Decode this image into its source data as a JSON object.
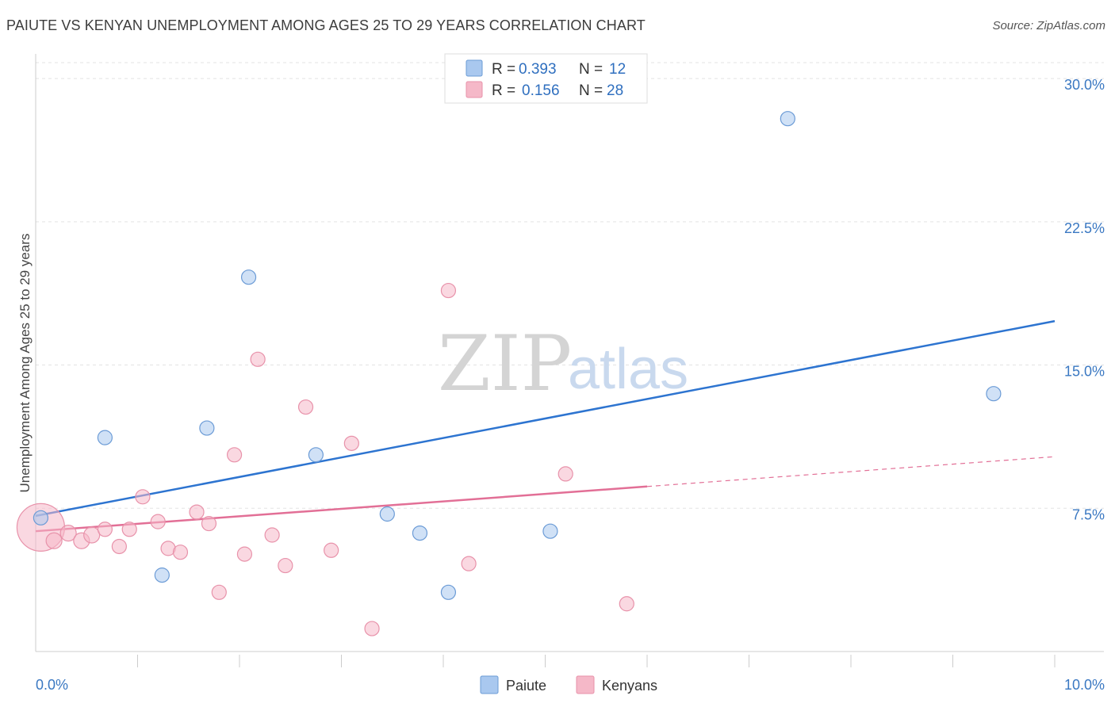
{
  "title": "PAIUTE VS KENYAN UNEMPLOYMENT AMONG AGES 25 TO 29 YEARS CORRELATION CHART",
  "source": "Source: ZipAtlas.com",
  "watermark": {
    "zip": "ZIP",
    "atlas": "atlas"
  },
  "legend_box": {
    "rows": [
      {
        "r_label": "R =",
        "r_value": "0.393",
        "n_label": "N =",
        "n_value": "12",
        "color": "#a9c8ef"
      },
      {
        "r_label": "R =",
        "r_value": "0.156",
        "n_label": "N =",
        "n_value": "28",
        "color": "#f5b8c8"
      }
    ]
  },
  "chart_data": {
    "type": "scatter",
    "title": "PAIUTE VS KENYAN UNEMPLOYMENT AMONG AGES 25 TO 29 YEARS CORRELATION CHART",
    "xlabel": "",
    "ylabel": "Unemployment Among Ages 25 to 29 years",
    "xlim": [
      0,
      10
    ],
    "ylim": [
      0,
      31
    ],
    "x_tick_labels": [
      "0.0%",
      "10.0%"
    ],
    "y_ticks": [
      7.5,
      15.0,
      22.5,
      30.0
    ],
    "y_tick_labels": [
      "7.5%",
      "15.0%",
      "22.5%",
      "30.0%"
    ],
    "grid": true,
    "legend_position": "bottom-center",
    "series": [
      {
        "name": "Paiute",
        "color": "#a9c8ef",
        "stroke": "#6b9bd6",
        "line_color": "#2d74d0",
        "x": [
          0.05,
          0.68,
          1.24,
          1.68,
          2.09,
          2.75,
          3.45,
          3.77,
          4.05,
          5.05,
          7.38,
          9.4
        ],
        "y": [
          7.0,
          11.2,
          4.0,
          11.7,
          19.6,
          10.3,
          7.2,
          6.2,
          3.1,
          6.3,
          27.9,
          13.5
        ],
        "trend": {
          "x0": 0,
          "y0": 7.1,
          "x1": 10,
          "y1": 17.3,
          "solid_to": 10
        }
      },
      {
        "name": "Kenyans",
        "color": "#f5b8c8",
        "stroke": "#e892aa",
        "line_color": "#e26f96",
        "x": [
          0.05,
          0.18,
          0.32,
          0.45,
          0.55,
          0.68,
          0.82,
          0.92,
          1.05,
          1.2,
          1.3,
          1.42,
          1.58,
          1.7,
          1.8,
          1.95,
          2.05,
          2.18,
          2.32,
          2.45,
          2.65,
          2.9,
          3.1,
          3.3,
          4.05,
          4.25,
          5.2,
          5.8
        ],
        "y": [
          6.5,
          5.8,
          6.2,
          5.8,
          6.1,
          6.4,
          5.5,
          6.4,
          8.1,
          6.8,
          5.4,
          5.2,
          7.3,
          6.7,
          3.1,
          10.3,
          5.1,
          15.3,
          6.1,
          4.5,
          12.8,
          5.3,
          10.9,
          1.2,
          18.9,
          4.6,
          9.3,
          2.5
        ],
        "sizes": [
          30,
          10,
          10,
          10,
          10,
          9,
          9,
          9,
          9,
          9,
          9,
          9,
          9,
          9,
          9,
          9,
          9,
          9,
          9,
          9,
          9,
          9,
          9,
          9,
          9,
          9,
          9,
          9
        ],
        "trend": {
          "x0": 0,
          "y0": 6.3,
          "x1": 10,
          "y1": 10.2,
          "solid_to": 6.0
        }
      }
    ]
  }
}
